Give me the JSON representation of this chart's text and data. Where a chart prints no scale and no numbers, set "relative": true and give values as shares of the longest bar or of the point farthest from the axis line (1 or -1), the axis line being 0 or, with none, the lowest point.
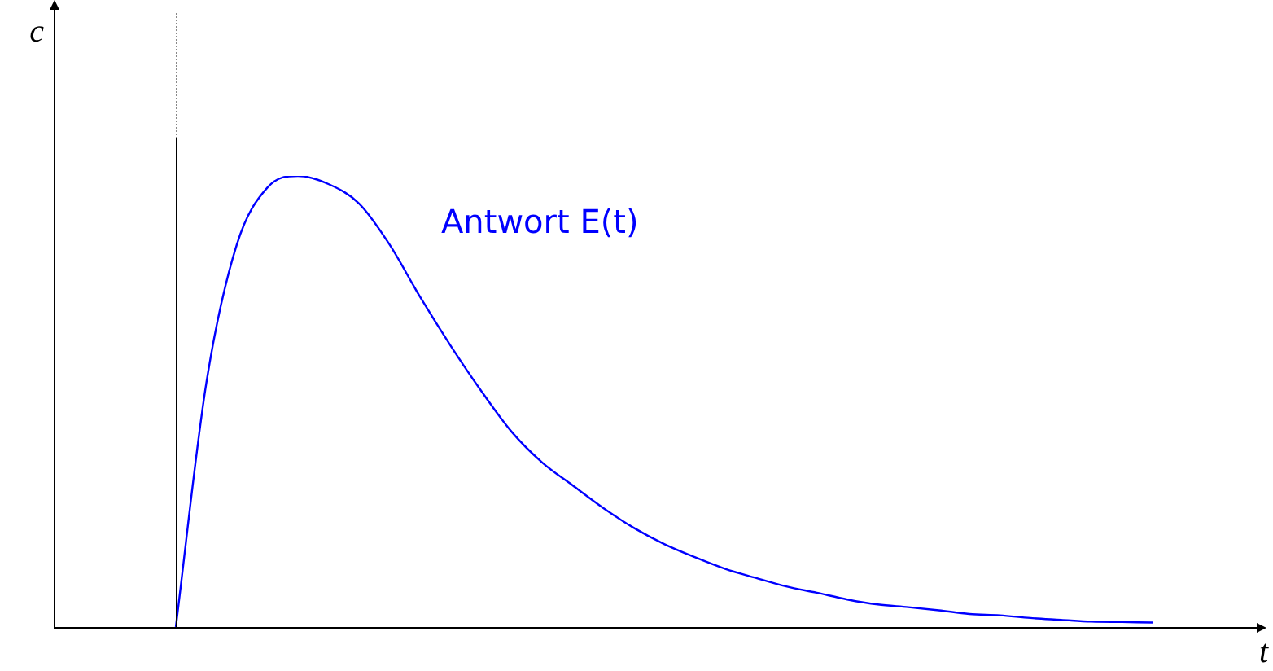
{
  "chart_data": {
    "type": "line",
    "relative": true,
    "xlabel": "t",
    "ylabel": "c",
    "tick_labels": false,
    "legend": false,
    "marker": "none",
    "categories": [
      null,
      null,
      null,
      null,
      null,
      null,
      null,
      null,
      null,
      null,
      null,
      null,
      null,
      null,
      null,
      null,
      null,
      null,
      null,
      null,
      null,
      null,
      null,
      null,
      null,
      null,
      null,
      null,
      null,
      null,
      null,
      null,
      null,
      null,
      null,
      null,
      null
    ],
    "series": [
      {
        "name": "Antwort E(t)",
        "color": "#0000ff",
        "values": [
          null,
          null,
          null,
          null,
          0,
          0.541,
          0.848,
          0.974,
          1,
          0.982,
          0.939,
          0.848,
          0.732,
          0.624,
          0.524,
          0.433,
          0.365,
          0.314,
          0.264,
          0.22,
          0.184,
          0.155,
          0.129,
          0.109,
          0.09,
          0.076,
          0.061,
          0.05,
          0.044,
          0.037,
          0.029,
          0.026,
          0.02,
          0.016,
          0.012,
          0.011,
          0.01
        ]
      }
    ]
  }
}
